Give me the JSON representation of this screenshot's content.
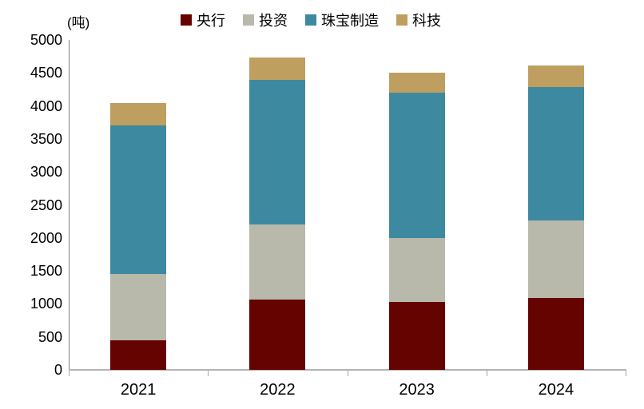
{
  "unit_label": "(吨)",
  "chart_data": {
    "type": "bar",
    "stacked": true,
    "title": "",
    "ylabel": "(吨)",
    "xlabel": "",
    "categories": [
      "2021",
      "2022",
      "2023",
      "2024"
    ],
    "series": [
      {
        "name": "央行",
        "color": "#650301",
        "values": [
          450,
          1070,
          1030,
          1090
        ]
      },
      {
        "name": "投资",
        "color": "#b8b8ab",
        "values": [
          1000,
          1130,
          970,
          1170
        ]
      },
      {
        "name": "珠宝制造",
        "color": "#3d89a0",
        "values": [
          2250,
          2200,
          2200,
          2030
        ]
      },
      {
        "name": "科技",
        "color": "#bf9f5f",
        "values": [
          340,
          330,
          310,
          320
        ]
      }
    ],
    "totals": [
      4040,
      4730,
      4510,
      4610
    ],
    "ylim": [
      0,
      5000
    ],
    "yticks": [
      0,
      500,
      1000,
      1500,
      2000,
      2500,
      3000,
      3500,
      4000,
      4500,
      5000
    ],
    "grid": false,
    "legend_position": "top"
  }
}
